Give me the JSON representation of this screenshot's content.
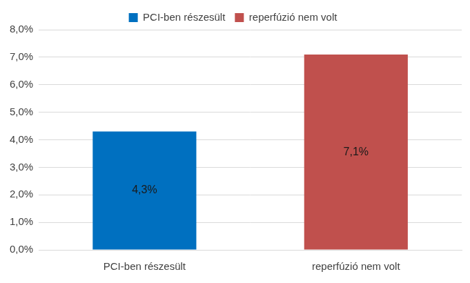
{
  "chart_data": {
    "type": "bar",
    "categories": [
      "PCI-ben részesült",
      "reperfúzió nem volt"
    ],
    "values": [
      4.3,
      7.1
    ],
    "value_labels": [
      "4,3%",
      "7,1%"
    ],
    "colors": [
      "#0070c0",
      "#c0504d"
    ],
    "ylim": [
      0,
      8
    ],
    "yticks": [
      {
        "value": 0,
        "label": "0,0%"
      },
      {
        "value": 1,
        "label": "1,0%"
      },
      {
        "value": 2,
        "label": "2,0%"
      },
      {
        "value": 3,
        "label": "3,0%"
      },
      {
        "value": 4,
        "label": "4,0%"
      },
      {
        "value": 5,
        "label": "5,0%"
      },
      {
        "value": 6,
        "label": "6,0%"
      },
      {
        "value": 7,
        "label": "7,0%"
      },
      {
        "value": 8,
        "label": "8,0%"
      }
    ],
    "grid": true,
    "legend": "top",
    "data_labels": true
  }
}
